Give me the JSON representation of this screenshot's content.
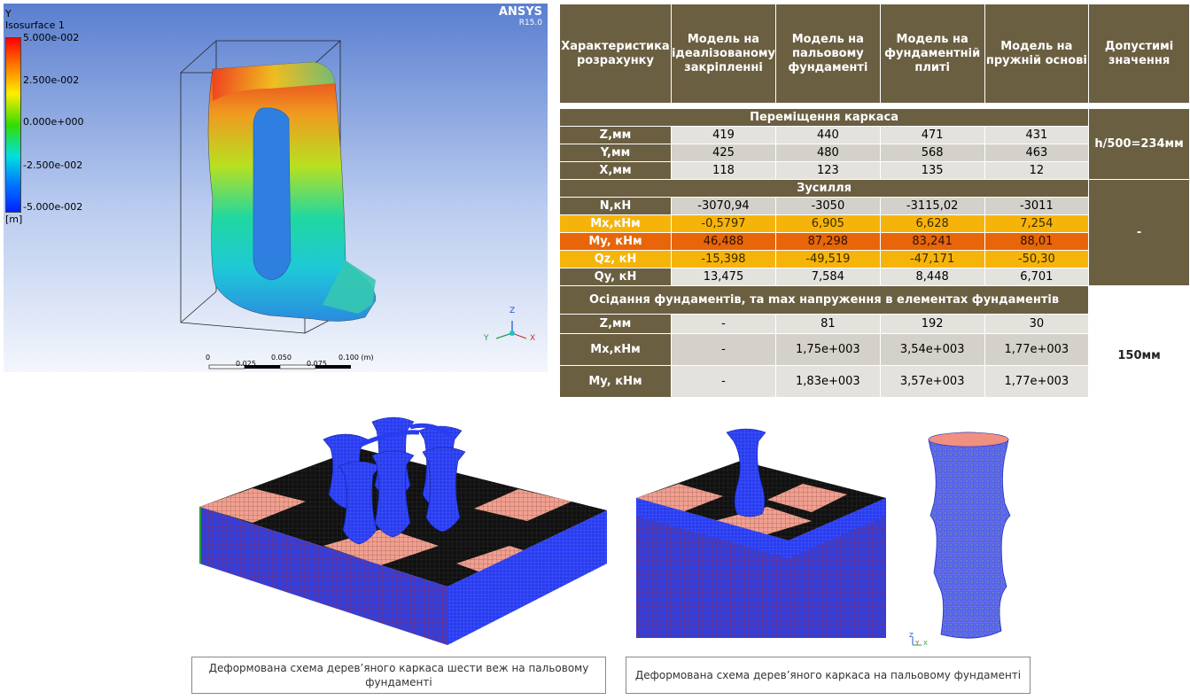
{
  "ansys": {
    "axis_label": "Y",
    "legend_title": "Isosurface 1",
    "legend_values": [
      "5.000e-002",
      "2.500e-002",
      "0.000e+000",
      "-2.500e-002",
      "-5.000e-002"
    ],
    "unit": "[m]",
    "brand": "ANSYS",
    "version": "R15.0",
    "scale_top": [
      "0",
      "0.050",
      "0.100  (m)"
    ],
    "scale_bottom": [
      "0.025",
      "0.075"
    ],
    "triad": {
      "z": "Z",
      "y": "Y",
      "x": "X"
    }
  },
  "table": {
    "headers": [
      "Характеристика розрахунку",
      "Модель на ідеалізованому закріпленні",
      "Модель на пальовому фундаменті",
      "Модель на фундаментній плиті",
      "Модель на пружній основі",
      "Допустимі значення"
    ],
    "section1": "Переміщення каркаса",
    "disp": [
      {
        "label": "Z,мм",
        "values": [
          "419",
          "440",
          "471",
          "431"
        ]
      },
      {
        "label": "Y,мм",
        "values": [
          "425",
          "480",
          "568",
          "463"
        ]
      },
      {
        "label": "X,мм",
        "values": [
          "118",
          "123",
          "135",
          "12"
        ]
      }
    ],
    "disp_allow": "h/500=234мм",
    "section2": "Зусилля",
    "forces": [
      {
        "label": "N,кН",
        "values": [
          "-3070,94",
          "-3050",
          "-3115,02",
          "-3011"
        ]
      },
      {
        "label": "Mx,кНм",
        "values": [
          "-0,5797",
          "6,905",
          "6,628",
          "7,254"
        ]
      },
      {
        "label": "My, кНм",
        "values": [
          "46,488",
          "87,298",
          "83,241",
          "88,01"
        ]
      },
      {
        "label": "Qz, кН",
        "values": [
          "-15,398",
          "-49,519",
          "-47,171",
          "-50,30"
        ]
      },
      {
        "label": "Qy, кН",
        "values": [
          "13,475",
          "7,584",
          "8,448",
          "6,701"
        ]
      }
    ],
    "forces_allow": "-",
    "section3": "Осідання фундаментів, та max напруження в елементах фундаментів",
    "settle": [
      {
        "label": "Z,мм",
        "values": [
          "-",
          "81",
          "192",
          "30"
        ]
      },
      {
        "label": "Mx,кНм",
        "values": [
          "-",
          "1,75e+003",
          "3,54e+003",
          "1,77e+003"
        ]
      },
      {
        "label": "My, кНм",
        "values": [
          "-",
          "1,83e+003",
          "3,57e+003",
          "1,77e+003"
        ]
      }
    ],
    "settle_allow": "150мм"
  },
  "captions": {
    "left": "Деформована схема дерев’яного каркаса шести веж на пальовому фундаменті",
    "right": "Деформована схема дерев’яного каркаса на пальовому фундаменті"
  },
  "mini_triad": {
    "z": "Z",
    "y": "Y",
    "x": "X"
  }
}
